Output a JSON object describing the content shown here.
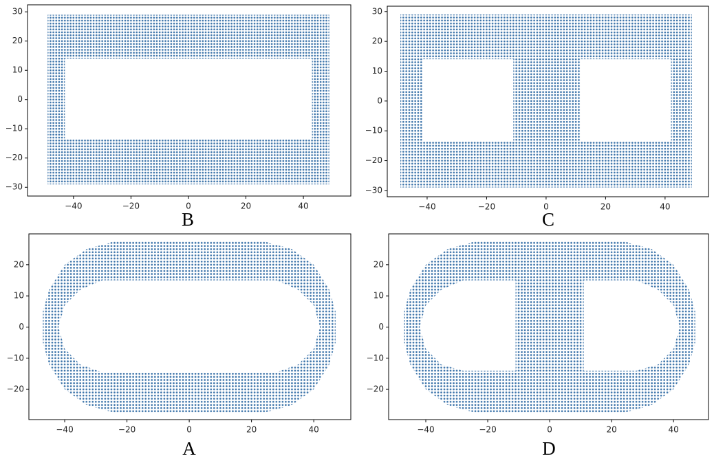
{
  "chart_data": [
    {
      "type": "scatter",
      "label": "B",
      "color": "#3f76ab",
      "xlim": [
        -56,
        56.5
      ],
      "ylim": [
        -33,
        32.4
      ],
      "xticks": [
        {
          "value": -40,
          "label": "−40"
        },
        {
          "value": -20,
          "label": "−20"
        },
        0,
        20,
        40
      ],
      "yticks": [
        {
          "value": -30,
          "label": "−30"
        },
        {
          "value": -20,
          "label": "−20"
        },
        {
          "value": -10,
          "label": "−10"
        },
        0,
        10,
        20,
        30
      ],
      "outline": [
        [
          -49,
          29
        ],
        [
          49,
          29
        ],
        [
          49,
          -29
        ],
        [
          -49,
          -29
        ]
      ],
      "holes": [
        [
          [
            -43,
            14
          ],
          [
            43,
            14
          ],
          [
            43,
            -13.5
          ],
          [
            -43,
            -13.5
          ]
        ]
      ]
    },
    {
      "type": "scatter",
      "label": "C",
      "color": "#3f76ab",
      "xlim": [
        -53.4,
        54.6
      ],
      "ylim": [
        -32.1,
        31.8
      ],
      "xticks": [
        {
          "value": -40,
          "label": "−40"
        },
        {
          "value": -20,
          "label": "−20"
        },
        0,
        20,
        40
      ],
      "yticks": [
        {
          "value": -30,
          "label": "−30"
        },
        {
          "value": -20,
          "label": "−20"
        },
        {
          "value": -10,
          "label": "−10"
        },
        0,
        10,
        20,
        30
      ],
      "outline": [
        [
          -49,
          29
        ],
        [
          49,
          29
        ],
        [
          49,
          -29
        ],
        [
          -49,
          -29
        ]
      ],
      "holes": [
        [
          [
            -41.5,
            14
          ],
          [
            -11,
            14
          ],
          [
            -11,
            -13.5
          ],
          [
            -41.5,
            -13.5
          ]
        ],
        [
          [
            11.5,
            14
          ],
          [
            42,
            14
          ],
          [
            42,
            -13.5
          ],
          [
            11.5,
            -13.5
          ]
        ]
      ]
    },
    {
      "type": "scatter",
      "label": "A",
      "color": "#3f76ab",
      "xlim": [
        -51.5,
        51.9
      ],
      "ylim": [
        -29.7,
        29.9
      ],
      "xticks": [
        {
          "value": -40,
          "label": "−40"
        },
        {
          "value": -20,
          "label": "−20"
        },
        0,
        20,
        40
      ],
      "yticks": [
        {
          "value": -20,
          "label": "−20"
        },
        {
          "value": -10,
          "label": "−10"
        },
        0,
        10,
        20
      ],
      "outline": [
        [
          -24,
          27.5
        ],
        [
          24,
          27.5
        ],
        [
          33,
          25
        ],
        [
          40,
          20
        ],
        [
          45,
          12
        ],
        [
          47,
          5
        ],
        [
          47,
          -5
        ],
        [
          45,
          -12
        ],
        [
          40,
          -20
        ],
        [
          33,
          -25
        ],
        [
          24,
          -27.5
        ],
        [
          -24,
          -27.5
        ],
        [
          -33,
          -25
        ],
        [
          -40,
          -20
        ],
        [
          -45,
          -12
        ],
        [
          -47,
          -5
        ],
        [
          -47,
          5
        ],
        [
          -45,
          12
        ],
        [
          -40,
          20
        ],
        [
          -33,
          25
        ]
      ],
      "holes": [
        [
          [
            -28,
            15
          ],
          [
            28,
            15
          ],
          [
            35,
            12
          ],
          [
            40,
            7
          ],
          [
            42,
            0
          ],
          [
            40,
            -7
          ],
          [
            35,
            -12
          ],
          [
            28,
            -14.5
          ],
          [
            -28,
            -14.5
          ],
          [
            -35,
            -12
          ],
          [
            -40,
            -7
          ],
          [
            -42,
            0
          ],
          [
            -40,
            7
          ],
          [
            -35,
            12
          ]
        ]
      ]
    },
    {
      "type": "scatter",
      "label": "D",
      "color": "#3f76ab",
      "xlim": [
        -52,
        51.3
      ],
      "ylim": [
        -29.7,
        29.9
      ],
      "xticks": [
        {
          "value": -40,
          "label": "−40"
        },
        {
          "value": -20,
          "label": "−20"
        },
        0,
        20,
        40
      ],
      "yticks": [
        {
          "value": -20,
          "label": "−20"
        },
        {
          "value": -10,
          "label": "−10"
        },
        0,
        10,
        20
      ],
      "outline": [
        [
          -24,
          27.5
        ],
        [
          24,
          27.5
        ],
        [
          33,
          25
        ],
        [
          40,
          20
        ],
        [
          45,
          12
        ],
        [
          47,
          5
        ],
        [
          47,
          -5
        ],
        [
          45,
          -12
        ],
        [
          40,
          -20
        ],
        [
          33,
          -25
        ],
        [
          24,
          -27.5
        ],
        [
          -24,
          -27.5
        ],
        [
          -33,
          -25
        ],
        [
          -40,
          -20
        ],
        [
          -45,
          -12
        ],
        [
          -47,
          -5
        ],
        [
          -47,
          5
        ],
        [
          -45,
          12
        ],
        [
          -40,
          20
        ],
        [
          -33,
          25
        ]
      ],
      "holes": [
        [
          [
            -11,
            15
          ],
          [
            -11,
            -14
          ],
          [
            -28,
            -14
          ],
          [
            -35,
            -12
          ],
          [
            -40,
            -7
          ],
          [
            -42,
            0
          ],
          [
            -40,
            7
          ],
          [
            -35,
            12
          ],
          [
            -28,
            15
          ]
        ],
        [
          [
            11,
            15
          ],
          [
            28,
            15
          ],
          [
            35,
            12
          ],
          [
            40,
            7
          ],
          [
            42,
            0
          ],
          [
            40,
            -7
          ],
          [
            35,
            -12
          ],
          [
            28,
            -14
          ],
          [
            11,
            -14
          ]
        ]
      ]
    }
  ]
}
